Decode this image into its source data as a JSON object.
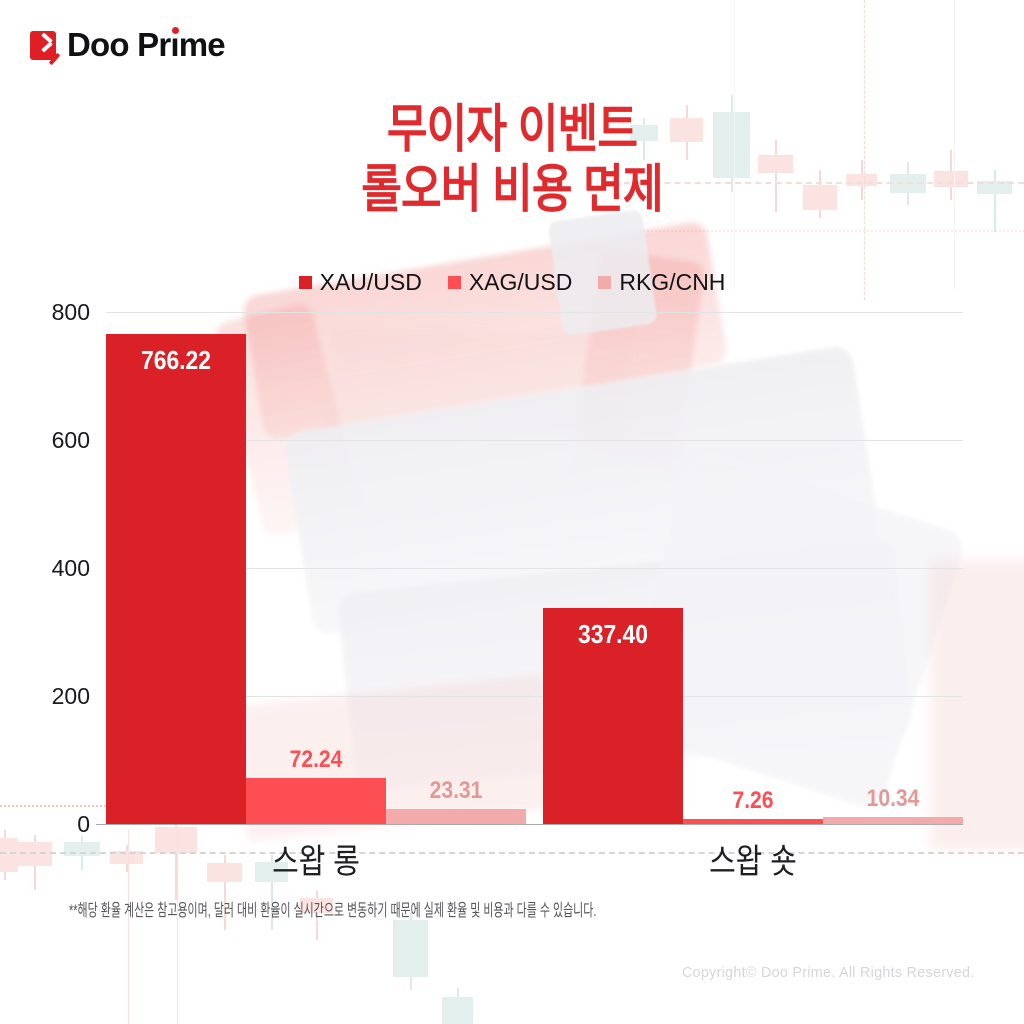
{
  "brand": {
    "logo_text": "Doo Prime"
  },
  "title": {
    "line1": "무이자 이벤트",
    "line2": "롤오버 비용 면제"
  },
  "legend": [
    {
      "label": "XAU/USD",
      "color": "#d92127"
    },
    {
      "label": "XAG/USD",
      "color": "#fd4e53"
    },
    {
      "label": "RKG/CNH",
      "color": "#f2abaa"
    }
  ],
  "chart_data": {
    "type": "bar",
    "categories": [
      "스왑 롱",
      "스왑 숏"
    ],
    "series": [
      {
        "name": "XAU/USD",
        "color": "#d92127",
        "values": [
          766.22,
          337.4
        ],
        "value_label_color": "#ffffff"
      },
      {
        "name": "XAG/USD",
        "color": "#fd4e53",
        "values": [
          72.24,
          7.26
        ],
        "value_label_color": "#fd4e53"
      },
      {
        "name": "RKG/CNH",
        "color": "#f2abaa",
        "values": [
          23.31,
          10.34
        ],
        "value_label_color": "#e09996"
      }
    ],
    "ylim": [
      0,
      800
    ],
    "yticks": [
      0,
      200,
      400,
      600,
      800
    ],
    "grid": true,
    "legend_position": "top"
  },
  "footnote": "**해당 환율 계산은 참고용이며, 달러 대비 환율이 실시간으로 변동하기 때문에 실제 환율 및 비용과 다를 수 있습니다.",
  "copyright": "Copyright© Doo Prime. All Rights Reserved."
}
